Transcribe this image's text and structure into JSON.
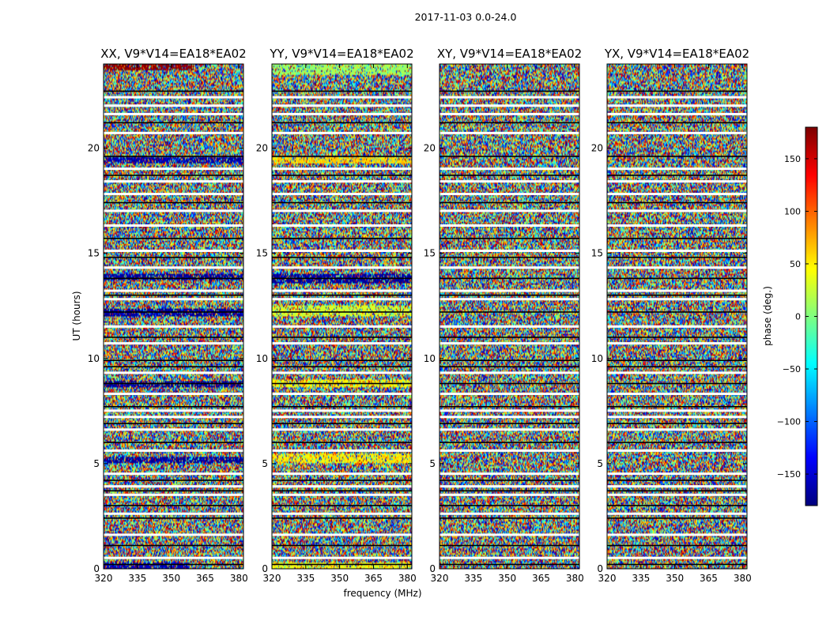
{
  "chart_data": {
    "type": "heatmap",
    "title": "2017-11-03 0.0-24.0",
    "xlabel": "frequency (MHz)",
    "ylabel": "UT (hours)",
    "xlim": [
      320,
      382
    ],
    "ylim": [
      0,
      24
    ],
    "x_ticks": [
      320,
      335,
      350,
      365,
      380
    ],
    "y_ticks": [
      0,
      5,
      10,
      15,
      20
    ],
    "colormap": "jet",
    "colorbar": {
      "label": "phase (deg.)",
      "range": [
        -180,
        180
      ],
      "ticks": [
        -150,
        -100,
        -50,
        0,
        50,
        100,
        150
      ]
    },
    "panels": [
      {
        "title": "XX, V9*V14=EA18*EA02",
        "bias_bands": [
          {
            "y": [
              23.7,
              24.0
            ],
            "x": [
              320,
              360
            ],
            "phase": 175
          },
          {
            "y": [
              19.3,
              19.6
            ],
            "x": [
              320,
              382
            ],
            "phase": -165
          },
          {
            "y": [
              13.7,
              14.0
            ],
            "x": [
              320,
              382
            ],
            "phase": -170
          },
          {
            "y": [
              12.0,
              12.35
            ],
            "x": [
              320,
              382
            ],
            "phase": -170
          },
          {
            "y": [
              8.6,
              8.9
            ],
            "x": [
              320,
              382
            ],
            "phase": -172
          },
          {
            "y": [
              5.0,
              5.35
            ],
            "x": [
              320,
              382
            ],
            "phase": -170
          },
          {
            "y": [
              0.0,
              0.3
            ],
            "x": [
              320,
              358
            ],
            "phase": -160
          }
        ]
      },
      {
        "title": "YY, V9*V14=EA18*EA02",
        "bias_bands": [
          {
            "y": [
              23.5,
              24.0
            ],
            "x": [
              320,
              382
            ],
            "phase": 10
          },
          {
            "y": [
              19.3,
              19.6
            ],
            "x": [
              320,
              382
            ],
            "phase": 60
          },
          {
            "y": [
              13.6,
              14.0
            ],
            "x": [
              320,
              382
            ],
            "phase": -170
          },
          {
            "y": [
              12.0,
              12.5
            ],
            "x": [
              320,
              382
            ],
            "phase": 30
          },
          {
            "y": [
              8.6,
              9.0
            ],
            "x": [
              320,
              382
            ],
            "phase": 45
          },
          {
            "y": [
              5.0,
              5.5
            ],
            "x": [
              320,
              382
            ],
            "phase": 50
          },
          {
            "y": [
              0.0,
              0.3
            ],
            "x": [
              320,
              382
            ],
            "phase": 40
          }
        ]
      },
      {
        "title": "XY, V9*V14=EA18*EA02",
        "bias_bands": []
      },
      {
        "title": "YX, V9*V14=EA18*EA02",
        "bias_bands": []
      }
    ],
    "gaps_hours": [
      0.5,
      1.6,
      2.6,
      3.5,
      3.9,
      4.5,
      5.6,
      6.6,
      7.2,
      7.5,
      8.3,
      9.3,
      10.7,
      11.5,
      12.8,
      13.2,
      14.3,
      15.1,
      16.3,
      17.0,
      17.8,
      18.4,
      19.0,
      20.7,
      21.6,
      22.0,
      22.4
    ],
    "flagged_lines_hours": [
      0.2,
      1.1,
      2.4,
      3.0,
      3.7,
      4.2,
      6.0,
      6.9,
      7.7,
      8.8,
      9.6,
      9.9,
      11.0,
      12.2,
      13.0,
      13.8,
      14.8,
      15.7,
      17.4,
      18.7,
      19.6,
      21.2,
      22.7
    ]
  }
}
